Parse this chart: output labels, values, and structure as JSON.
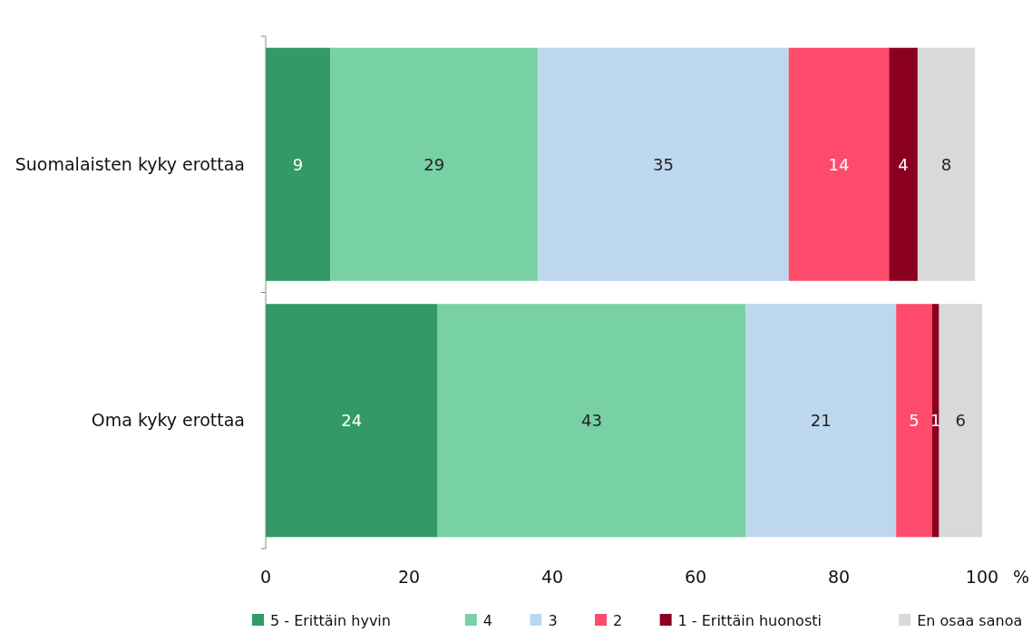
{
  "chart_data": {
    "type": "bar",
    "orientation": "horizontal",
    "stacked": true,
    "categories": [
      "Suomalaisten kyky erottaa",
      "Oma kyky erottaa"
    ],
    "series": [
      {
        "name": "5 - Erittäin hyvin",
        "color": "#339966",
        "values": [
          9,
          24
        ]
      },
      {
        "name": "4",
        "color": "#77d1a4",
        "values": [
          29,
          43
        ]
      },
      {
        "name": "3",
        "color": "#bdd7ee",
        "values": [
          35,
          21
        ]
      },
      {
        "name": "2",
        "color": "#ff4b6b",
        "values": [
          14,
          5
        ]
      },
      {
        "name": "1 - Erittäin huonosti",
        "color": "#8b0021",
        "values": [
          4,
          1
        ]
      },
      {
        "name": "En osaa sanoa",
        "color": "#d9d9d9",
        "values": [
          8,
          6
        ]
      }
    ],
    "xlim": [
      0,
      100
    ],
    "xticks": [
      0,
      20,
      40,
      60,
      80,
      100
    ],
    "xlabel": "%",
    "data_labels": true,
    "legend": "bottom",
    "grid": false
  }
}
